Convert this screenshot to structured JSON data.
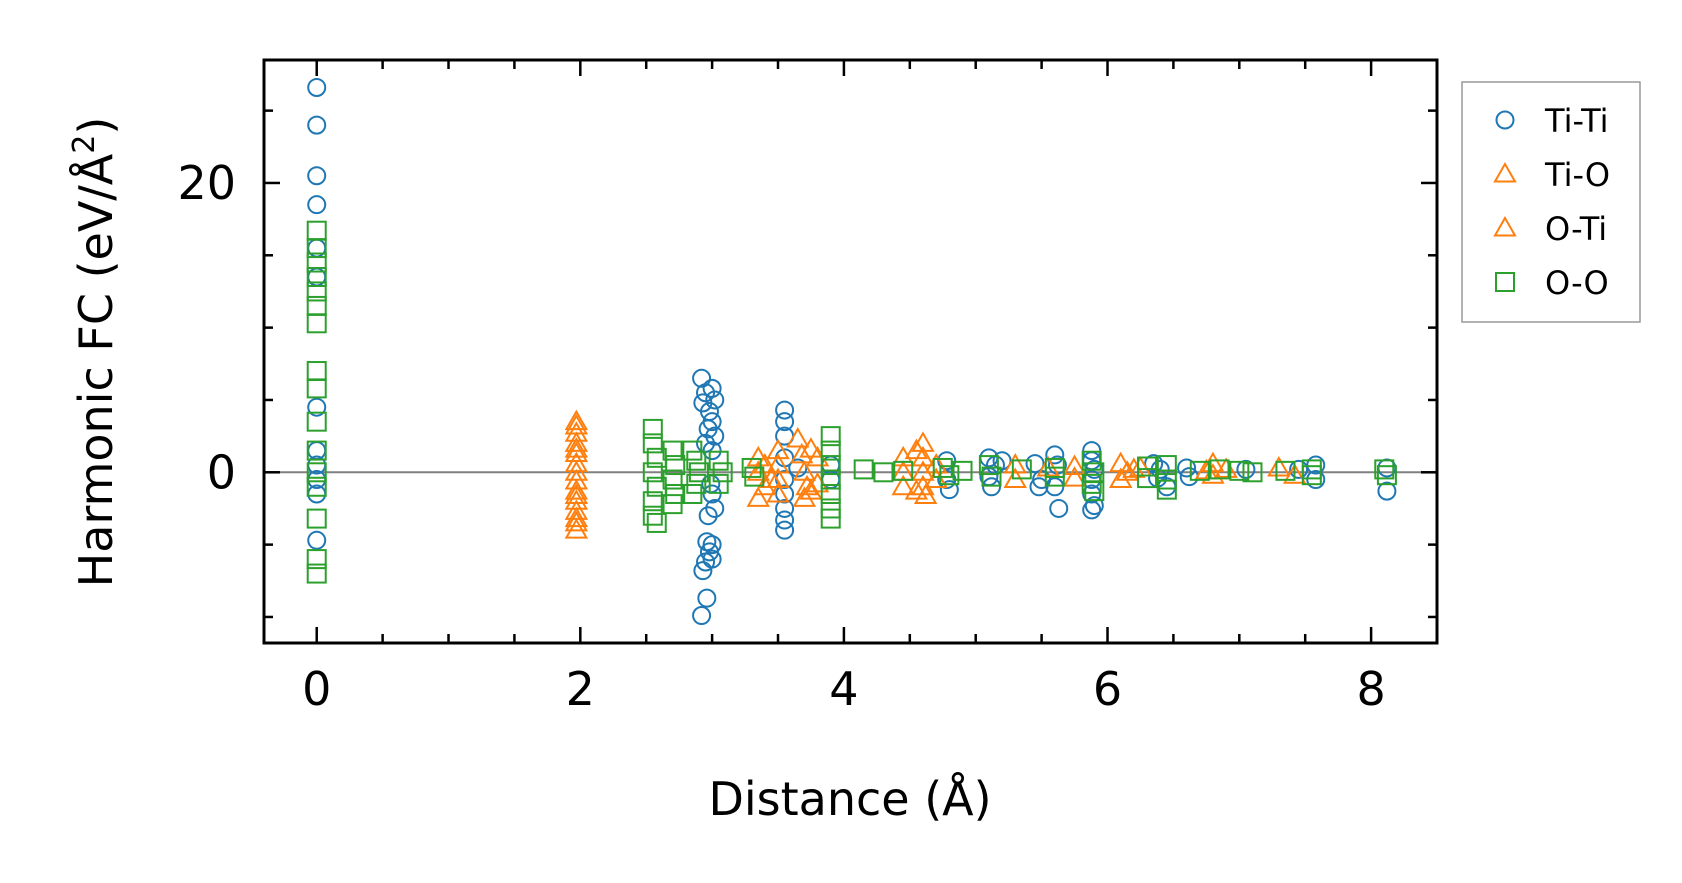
{
  "chart_data": {
    "type": "scatter",
    "title": "",
    "xlabel": "Distance (Å)",
    "ylabel_main": "Harmonic FC (eV/Å",
    "ylabel_sup": "2",
    "ylabel_close": ")",
    "xlim": [
      -0.4,
      8.5
    ],
    "ylim": [
      -11.8,
      28.5
    ],
    "xticks": [
      0,
      2,
      4,
      6,
      8
    ],
    "xtick_labels": [
      "0",
      "2",
      "4",
      "6",
      "8"
    ],
    "yticks": [
      0,
      20
    ],
    "ytick_labels": [
      "0",
      "20"
    ],
    "minor_xtick_step": 0.5,
    "minor_ytick_step": 5,
    "zero_line": true,
    "grid": false,
    "legend_placement": "outside-right-top",
    "series": [
      {
        "name": "Ti-Ti",
        "marker": "circle",
        "color": "#1f77b4",
        "points": [
          [
            0,
            26.6
          ],
          [
            0,
            24.0
          ],
          [
            0,
            20.5
          ],
          [
            0,
            18.5
          ],
          [
            0,
            15.5
          ],
          [
            0,
            13.5
          ],
          [
            0,
            4.5
          ],
          [
            0,
            1.5
          ],
          [
            0,
            0.5
          ],
          [
            0,
            -0.5
          ],
          [
            0,
            -1.5
          ],
          [
            0,
            -4.7
          ],
          [
            2.92,
            6.5
          ],
          [
            2.95,
            5.5
          ],
          [
            3.0,
            5.8
          ],
          [
            3.02,
            5.0
          ],
          [
            2.93,
            4.8
          ],
          [
            2.98,
            4.2
          ],
          [
            3.0,
            3.5
          ],
          [
            2.97,
            3.0
          ],
          [
            3.02,
            2.5
          ],
          [
            2.95,
            2.0
          ],
          [
            3.0,
            1.5
          ],
          [
            2.99,
            -0.8
          ],
          [
            3.0,
            -1.5
          ],
          [
            3.02,
            -2.5
          ],
          [
            2.97,
            -3.0
          ],
          [
            2.96,
            -4.8
          ],
          [
            3.0,
            -5.0
          ],
          [
            2.98,
            -5.5
          ],
          [
            2.95,
            -6.2
          ],
          [
            3.0,
            -6.0
          ],
          [
            2.93,
            -6.8
          ],
          [
            2.96,
            -8.7
          ],
          [
            2.92,
            -9.9
          ],
          [
            3.55,
            4.3
          ],
          [
            3.55,
            3.5
          ],
          [
            3.55,
            2.5
          ],
          [
            3.55,
            1.0
          ],
          [
            3.55,
            -0.5
          ],
          [
            3.55,
            -1.5
          ],
          [
            3.55,
            -2.5
          ],
          [
            3.55,
            -3.3
          ],
          [
            3.55,
            -4.0
          ],
          [
            3.65,
            0.3
          ],
          [
            3.9,
            0.5
          ],
          [
            3.9,
            -0.5
          ],
          [
            4.78,
            0.8
          ],
          [
            4.78,
            -0.5
          ],
          [
            4.8,
            -1.2
          ],
          [
            5.1,
            1.0
          ],
          [
            5.15,
            0.5
          ],
          [
            5.1,
            -0.3
          ],
          [
            5.12,
            -1.0
          ],
          [
            5.2,
            0.8
          ],
          [
            5.45,
            0.6
          ],
          [
            5.5,
            -0.5
          ],
          [
            5.48,
            -1.0
          ],
          [
            5.6,
            1.2
          ],
          [
            5.62,
            0.5
          ],
          [
            5.6,
            -1.0
          ],
          [
            5.63,
            -2.5
          ],
          [
            5.88,
            1.5
          ],
          [
            5.88,
            0.8
          ],
          [
            5.9,
            0.2
          ],
          [
            5.88,
            -0.5
          ],
          [
            5.88,
            -1.5
          ],
          [
            5.9,
            -2.3
          ],
          [
            5.88,
            -2.6
          ],
          [
            6.35,
            0.6
          ],
          [
            6.4,
            0.2
          ],
          [
            6.38,
            -0.4
          ],
          [
            6.45,
            -1.0
          ],
          [
            6.6,
            0.3
          ],
          [
            6.62,
            -0.3
          ],
          [
            7.05,
            0.2
          ],
          [
            7.45,
            0.2
          ],
          [
            7.58,
            0.5
          ],
          [
            7.58,
            -0.5
          ],
          [
            8.12,
            0.3
          ],
          [
            8.12,
            -1.3
          ]
        ]
      },
      {
        "name": "Ti-O",
        "marker": "triangle",
        "color": "#ff7f0e",
        "points": [
          [
            1.97,
            3.5
          ],
          [
            1.97,
            2.7
          ],
          [
            1.97,
            2.0
          ],
          [
            1.97,
            1.3
          ],
          [
            1.97,
            0.6
          ],
          [
            1.97,
            0.0
          ],
          [
            1.97,
            -0.6
          ],
          [
            1.97,
            -1.3
          ],
          [
            1.97,
            -2.0
          ],
          [
            1.97,
            -2.7
          ],
          [
            1.97,
            -3.5
          ],
          [
            1.97,
            -4.0
          ],
          [
            3.35,
            1.0
          ],
          [
            3.35,
            0.0
          ],
          [
            3.4,
            -1.0
          ],
          [
            3.35,
            -1.8
          ],
          [
            3.5,
            1.5
          ],
          [
            3.5,
            0.5
          ],
          [
            3.5,
            -0.5
          ],
          [
            3.5,
            -1.5
          ],
          [
            3.65,
            2.3
          ],
          [
            3.68,
            1.2
          ],
          [
            3.7,
            0.0
          ],
          [
            3.72,
            -1.0
          ],
          [
            3.7,
            -1.8
          ],
          [
            3.8,
            1.0
          ],
          [
            3.8,
            -0.8
          ],
          [
            4.45,
            1.0
          ],
          [
            4.45,
            0.0
          ],
          [
            4.45,
            -1.0
          ],
          [
            4.6,
            2.0
          ],
          [
            4.6,
            1.0
          ],
          [
            4.6,
            0.0
          ],
          [
            4.6,
            -1.0
          ],
          [
            4.62,
            -1.6
          ],
          [
            4.7,
            0.5
          ],
          [
            4.7,
            -0.5
          ],
          [
            5.3,
            0.5
          ],
          [
            5.3,
            -0.5
          ],
          [
            5.55,
            0.3
          ],
          [
            5.75,
            0.4
          ],
          [
            5.75,
            -0.4
          ],
          [
            6.1,
            0.6
          ],
          [
            6.15,
            0.0
          ],
          [
            6.1,
            -0.5
          ],
          [
            6.25,
            0.3
          ],
          [
            6.8,
            0.6
          ],
          [
            6.8,
            -0.2
          ],
          [
            6.9,
            0.2
          ],
          [
            7.3,
            0.3
          ],
          [
            7.42,
            -0.2
          ]
        ]
      },
      {
        "name": "O-Ti",
        "marker": "triangle",
        "color": "#ff7f0e",
        "points": [
          [
            1.97,
            3.2
          ],
          [
            1.97,
            1.6
          ],
          [
            1.97,
            -1.6
          ],
          [
            1.97,
            -3.2
          ],
          [
            3.4,
            0.5
          ],
          [
            3.45,
            -0.5
          ],
          [
            3.75,
            1.6
          ],
          [
            3.75,
            -1.3
          ],
          [
            4.55,
            1.5
          ],
          [
            4.55,
            -1.3
          ],
          [
            6.2,
            0.2
          ],
          [
            6.75,
            0.1
          ]
        ]
      },
      {
        "name": "O-O",
        "marker": "square",
        "color": "#2ca02c",
        "points": [
          [
            0,
            16.7
          ],
          [
            0,
            15.5
          ],
          [
            0,
            14.5
          ],
          [
            0,
            13.5
          ],
          [
            0,
            12.5
          ],
          [
            0,
            11.5
          ],
          [
            0,
            10.3
          ],
          [
            0,
            7.0
          ],
          [
            0,
            5.8
          ],
          [
            0,
            3.5
          ],
          [
            0,
            1.5
          ],
          [
            0,
            0.0
          ],
          [
            0,
            -1.0
          ],
          [
            0,
            -3.2
          ],
          [
            0,
            -6.0
          ],
          [
            0,
            -7.0
          ],
          [
            2.55,
            3.0
          ],
          [
            2.55,
            2.0
          ],
          [
            2.58,
            1.0
          ],
          [
            2.55,
            0.0
          ],
          [
            2.58,
            -1.0
          ],
          [
            2.55,
            -2.0
          ],
          [
            2.55,
            -3.0
          ],
          [
            2.58,
            -3.5
          ],
          [
            2.7,
            1.5
          ],
          [
            2.72,
            0.5
          ],
          [
            2.7,
            -0.5
          ],
          [
            2.72,
            -1.5
          ],
          [
            2.7,
            -2.2
          ],
          [
            2.85,
            1.5
          ],
          [
            2.88,
            0.8
          ],
          [
            2.9,
            0.0
          ],
          [
            2.88,
            -0.8
          ],
          [
            2.85,
            -1.5
          ],
          [
            3.05,
            0.8
          ],
          [
            3.08,
            0.0
          ],
          [
            3.05,
            -0.8
          ],
          [
            3.3,
            0.3
          ],
          [
            3.32,
            -0.3
          ],
          [
            3.9,
            2.5
          ],
          [
            3.9,
            1.5
          ],
          [
            3.9,
            0.5
          ],
          [
            3.9,
            -0.5
          ],
          [
            3.9,
            -1.5
          ],
          [
            3.9,
            -2.5
          ],
          [
            3.9,
            -3.2
          ],
          [
            4.15,
            0.2
          ],
          [
            4.3,
            0.0
          ],
          [
            4.45,
            0.1
          ],
          [
            4.75,
            0.3
          ],
          [
            4.8,
            -0.2
          ],
          [
            4.9,
            0.1
          ],
          [
            5.1,
            0.5
          ],
          [
            5.12,
            -0.3
          ],
          [
            5.35,
            0.2
          ],
          [
            5.6,
            0.3
          ],
          [
            5.6,
            -0.3
          ],
          [
            5.88,
            0.8
          ],
          [
            5.9,
            0.0
          ],
          [
            5.88,
            -0.8
          ],
          [
            5.9,
            -1.3
          ],
          [
            6.3,
            0.4
          ],
          [
            6.3,
            -0.4
          ],
          [
            6.45,
            0.5
          ],
          [
            6.45,
            -0.5
          ],
          [
            6.45,
            -1.2
          ],
          [
            6.7,
            0.1
          ],
          [
            6.85,
            0.2
          ],
          [
            7.0,
            0.1
          ],
          [
            7.1,
            0.0
          ],
          [
            7.35,
            0.1
          ],
          [
            7.55,
            0.2
          ],
          [
            7.55,
            -0.2
          ],
          [
            8.1,
            0.2
          ],
          [
            8.12,
            -0.2
          ]
        ]
      }
    ],
    "legend": [
      "Ti-Ti",
      "Ti-O",
      "O-Ti",
      "O-O"
    ]
  }
}
